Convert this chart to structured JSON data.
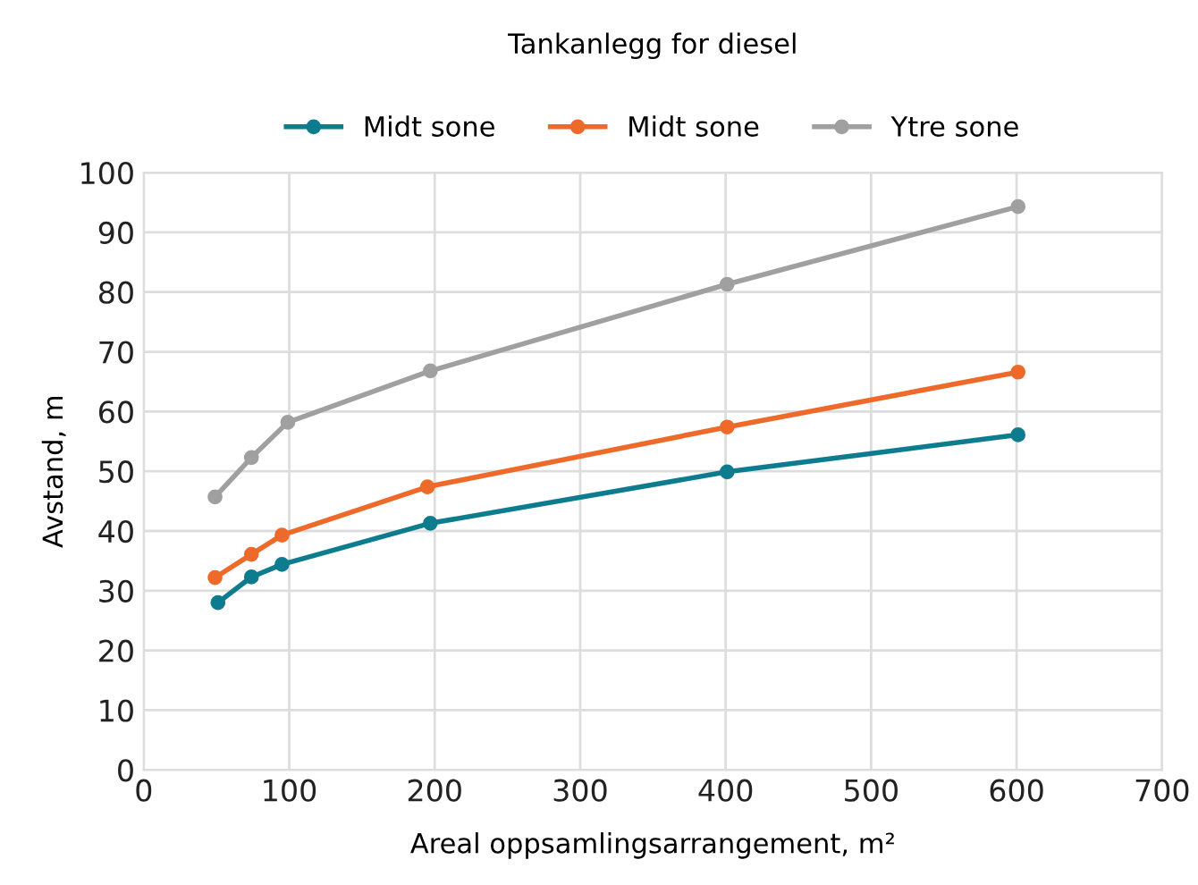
{
  "chart_data": {
    "type": "line",
    "title": "Tankanlegg for diesel",
    "xlabel": "Areal oppsamlingsarrangement, m²",
    "ylabel": "Avstand, m",
    "series": [
      {
        "name": "Midt sone",
        "color": "#0e7c8f",
        "x": [
          51,
          74,
          95,
          197,
          401,
          601
        ],
        "values": [
          28.0,
          32.3,
          34.4,
          41.3,
          49.9,
          56.1
        ]
      },
      {
        "name": "Midt sone",
        "color": "#ee6a2a",
        "x": [
          49,
          74,
          95,
          195,
          401,
          601
        ],
        "values": [
          32.2,
          36.1,
          39.3,
          47.4,
          57.4,
          66.6
        ]
      },
      {
        "name": "Ytre sone",
        "color": "#a0a0a0",
        "x": [
          49,
          74,
          99,
          197,
          401,
          601
        ],
        "values": [
          45.7,
          52.3,
          58.2,
          66.8,
          81.3,
          94.3
        ]
      }
    ],
    "xlim": [
      0,
      700
    ],
    "xticks": [
      0,
      100,
      200,
      300,
      400,
      500,
      600,
      700
    ],
    "ylim": [
      0,
      100
    ],
    "yticks": [
      0,
      10,
      20,
      30,
      40,
      50,
      60,
      70,
      80,
      90,
      100
    ],
    "grid": true,
    "legend": "top",
    "marker": "circle",
    "line_style": "solid"
  }
}
